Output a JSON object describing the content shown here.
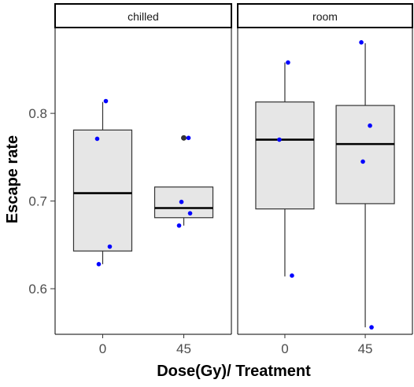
{
  "chart_data": {
    "type": "box",
    "ylabel": "Escape rate",
    "xlabel": "Dose(Gy)/ Treatment",
    "ylim": [
      0.548,
      0.897
    ],
    "yticks": [
      "0.6",
      "0.7",
      "0.8"
    ],
    "ytick_values": [
      0.6,
      0.7,
      0.8
    ],
    "categories": [
      "0",
      "45"
    ],
    "box_fill": "#e6e6e6",
    "point_color": "#0000ff",
    "outlier_color": "#333333",
    "grid": false,
    "panels": [
      {
        "name": "chilled",
        "boxes": [
          {
            "category": "0",
            "whisker_low": 0.628,
            "q1": 0.643,
            "median": 0.709,
            "q3": 0.781,
            "whisker_high": 0.813,
            "outliers": []
          },
          {
            "category": "45",
            "whisker_low": 0.672,
            "q1": 0.681,
            "median": 0.692,
            "q3": 0.716,
            "whisker_high": 0.716,
            "outliers": [
              0.772
            ]
          }
        ],
        "points": [
          {
            "category": "0",
            "value": 0.814
          },
          {
            "category": "0",
            "value": 0.771
          },
          {
            "category": "0",
            "value": 0.648
          },
          {
            "category": "0",
            "value": 0.628
          },
          {
            "category": "45",
            "value": 0.772
          },
          {
            "category": "45",
            "value": 0.699
          },
          {
            "category": "45",
            "value": 0.686
          },
          {
            "category": "45",
            "value": 0.672
          }
        ]
      },
      {
        "name": "room",
        "boxes": [
          {
            "category": "0",
            "whisker_low": 0.614,
            "q1": 0.691,
            "median": 0.77,
            "q3": 0.813,
            "whisker_high": 0.858,
            "outliers": []
          },
          {
            "category": "45",
            "whisker_low": 0.556,
            "q1": 0.697,
            "median": 0.765,
            "q3": 0.809,
            "whisker_high": 0.88,
            "outliers": []
          }
        ],
        "points": [
          {
            "category": "0",
            "value": 0.858
          },
          {
            "category": "0",
            "value": 0.77
          },
          {
            "category": "0",
            "value": 0.615
          },
          {
            "category": "45",
            "value": 0.881
          },
          {
            "category": "45",
            "value": 0.786
          },
          {
            "category": "45",
            "value": 0.745
          },
          {
            "category": "45",
            "value": 0.556
          }
        ]
      }
    ]
  }
}
